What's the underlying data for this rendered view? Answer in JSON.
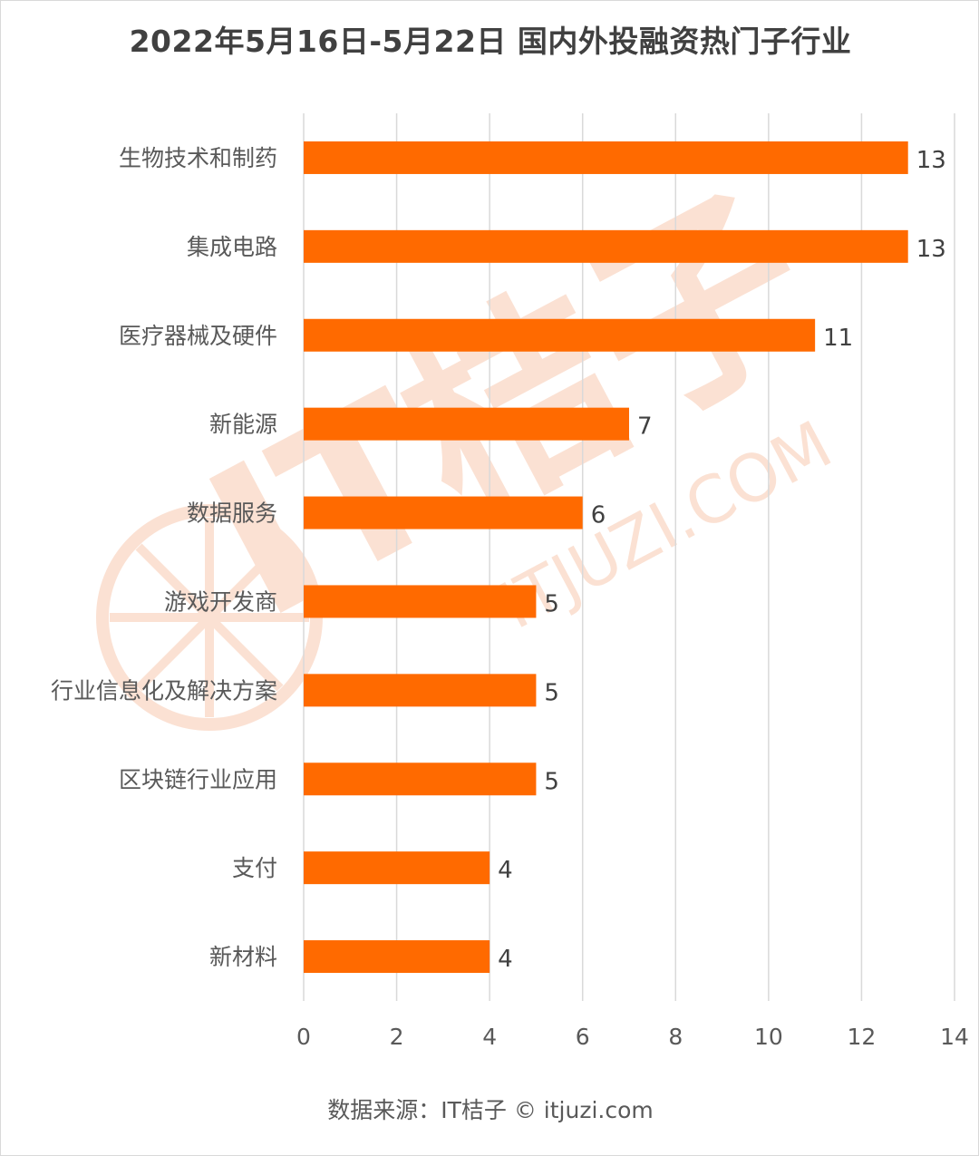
{
  "chart_data": {
    "type": "bar",
    "orientation": "horizontal",
    "title": "2022年5月16日-5月22日 国内外投融资热门子行业",
    "categories": [
      "生物技术和制药",
      "集成电路",
      "医疗器械及硬件",
      "新能源",
      "数据服务",
      "游戏开发商",
      "行业信息化及解决方案",
      "区块链行业应用",
      "支付",
      "新材料"
    ],
    "values": [
      13,
      13,
      11,
      7,
      6,
      5,
      5,
      5,
      4,
      4
    ],
    "xlim": [
      0,
      14
    ],
    "xticks": [
      0,
      2,
      4,
      6,
      8,
      10,
      12,
      14
    ],
    "grid": true,
    "data_labels": true,
    "bar_color": "#FF6A00"
  },
  "source": "数据来源：IT桔子 © itjuzi.com",
  "watermark": {
    "logo_text": "IT桔子",
    "url_text": "ITJUZI.COM",
    "color": "#F7C9B0"
  },
  "colors": {
    "gridline": "#d9d9d9",
    "label_text": "#595959",
    "value_text": "#404040"
  }
}
